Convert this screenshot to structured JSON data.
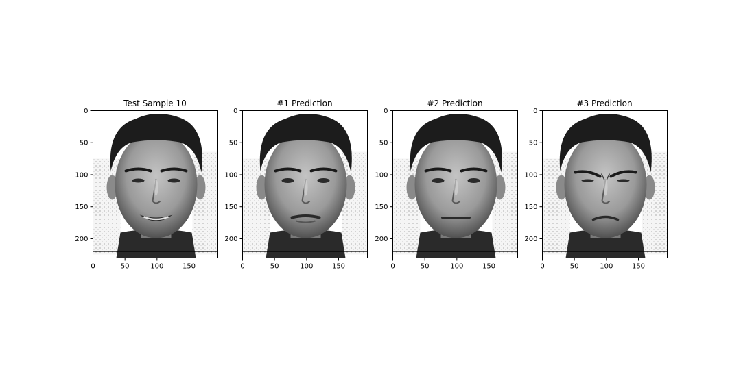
{
  "panels": [
    {
      "title": "Test Sample 10",
      "expression": "smiling",
      "x_ticks": [
        "0",
        "50",
        "100",
        "150"
      ],
      "y_ticks": [
        "0",
        "50",
        "100",
        "150",
        "200"
      ]
    },
    {
      "title": "#1 Prediction",
      "expression": "neutral-pout",
      "x_ticks": [
        "0",
        "50",
        "100",
        "150"
      ],
      "y_ticks": [
        "0",
        "50",
        "100",
        "150",
        "200"
      ]
    },
    {
      "title": "#2 Prediction",
      "expression": "neutral",
      "x_ticks": [
        "0",
        "50",
        "100",
        "150"
      ],
      "y_ticks": [
        "0",
        "50",
        "100",
        "150",
        "200"
      ]
    },
    {
      "title": "#3 Prediction",
      "expression": "frowning",
      "x_ticks": [
        "0",
        "50",
        "100",
        "150"
      ],
      "y_ticks": [
        "0",
        "50",
        "100",
        "150",
        "200"
      ]
    }
  ],
  "image_extent": {
    "x": [
      0,
      195
    ],
    "y": [
      230,
      0
    ]
  },
  "colors": {
    "background": "#ffffff",
    "hair": "#1c1c1c",
    "skin": "#9c9c9c",
    "shirt": "#2a2a2a",
    "wall": "#e6e6e6"
  }
}
